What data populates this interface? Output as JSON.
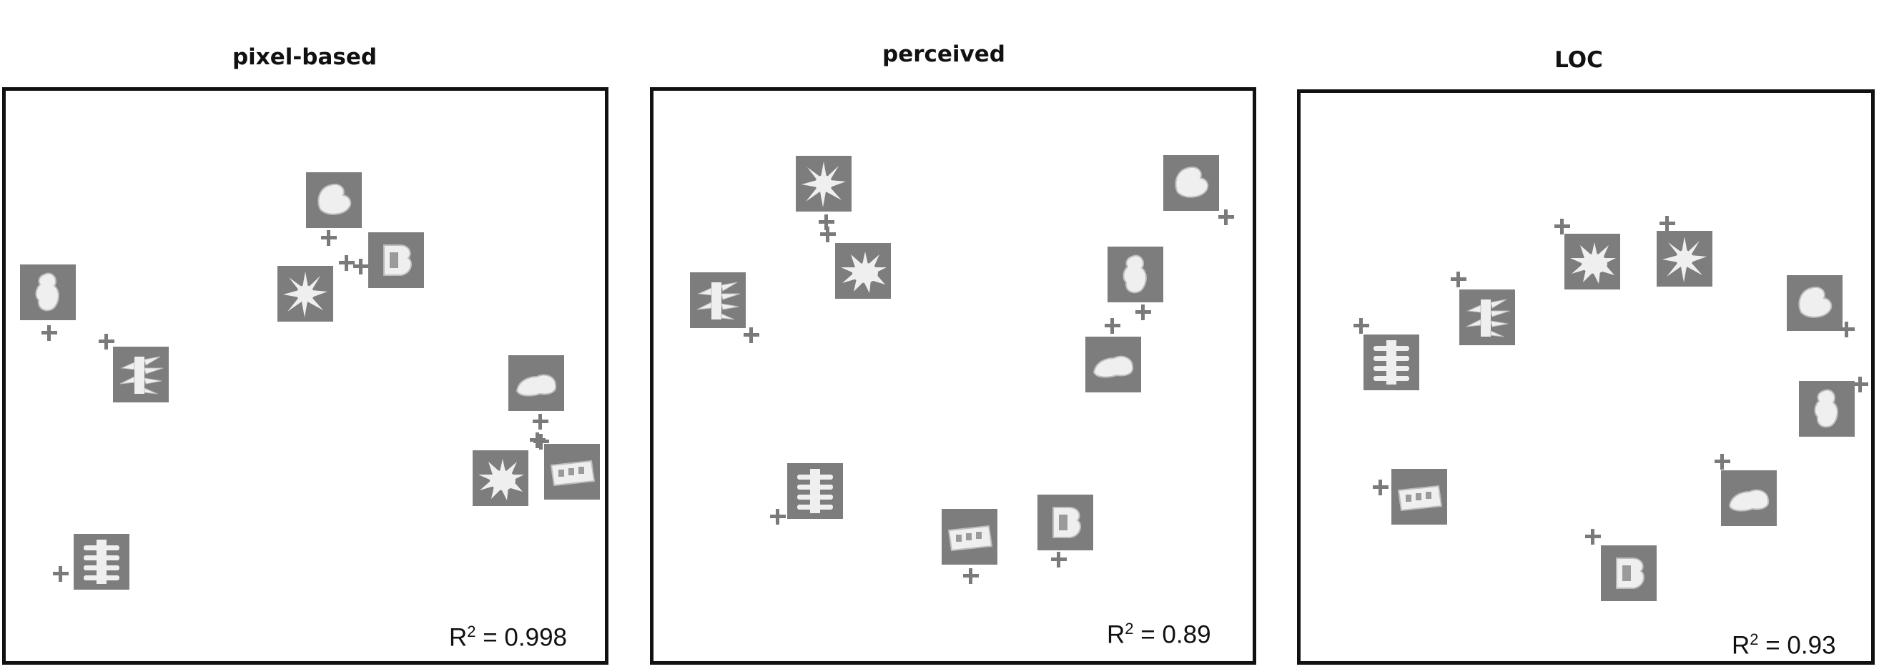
{
  "panels": [
    {
      "title": "pixel-based",
      "r2_label": "R",
      "r2_sup": "2",
      "r2_value": " = 0.998"
    },
    {
      "title": "perceived",
      "r2_label": "R",
      "r2_sup": "2",
      "r2_value": " = 0.89"
    },
    {
      "title": "LOC",
      "r2_label": "R",
      "r2_sup": "2",
      "r2_value": " = 0.93"
    }
  ],
  "colors": {
    "thumb_bg": "#7d7d7d",
    "shape": "#eeeeee",
    "cross": "#7a7a7a",
    "frame": "#111111"
  }
}
